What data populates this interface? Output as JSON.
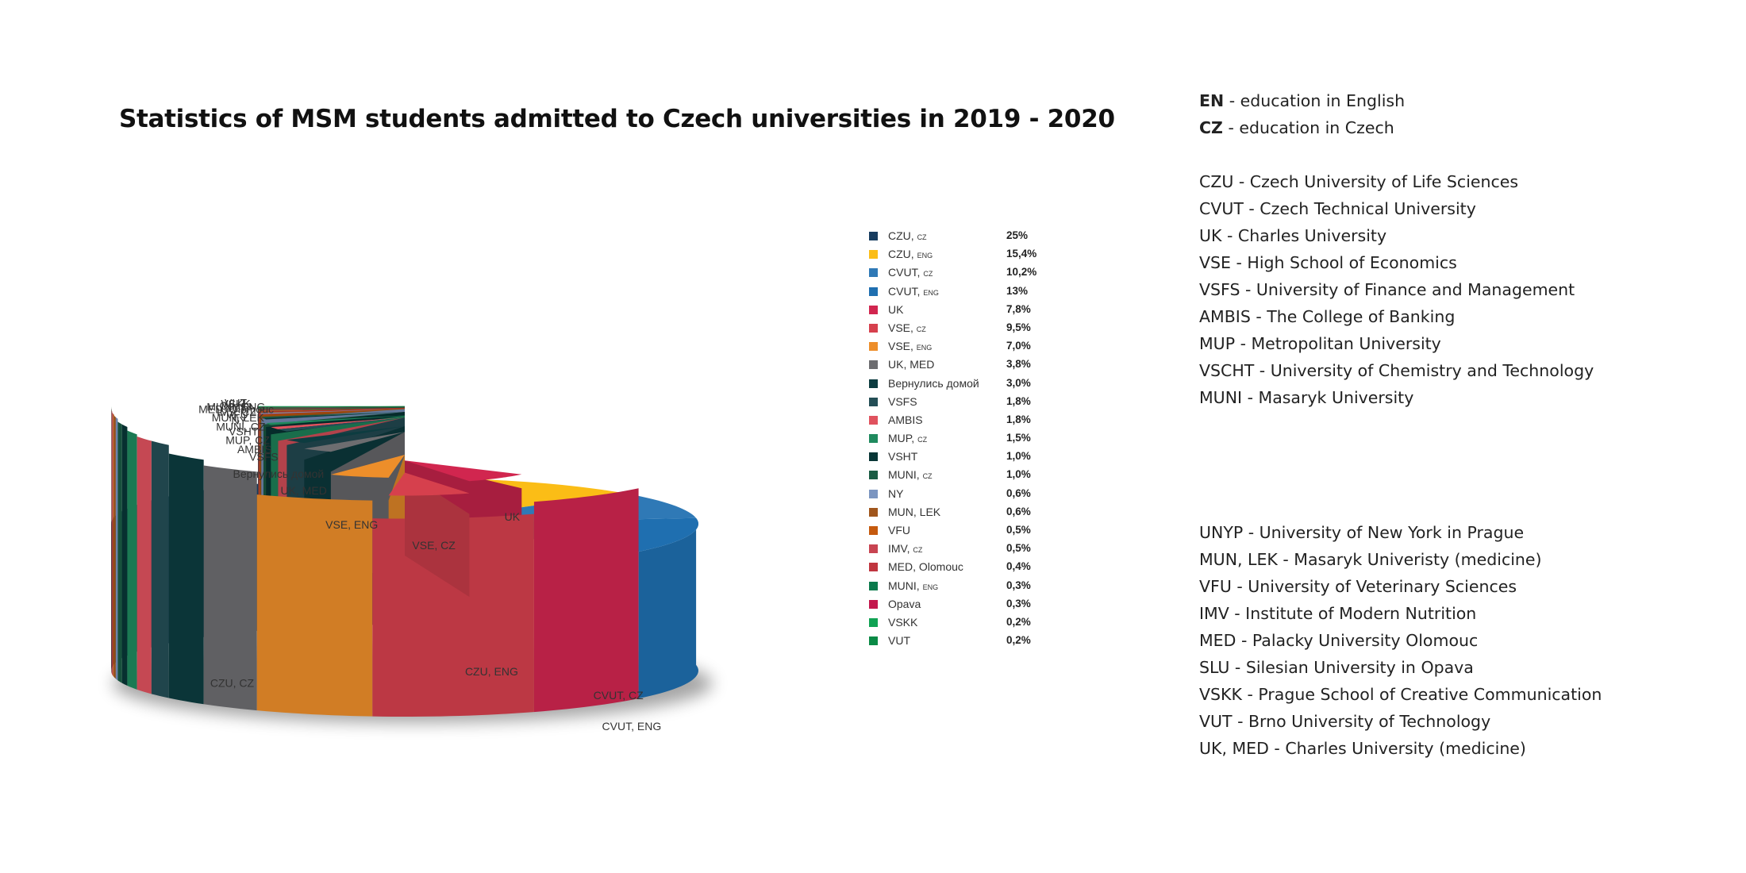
{
  "chart_data": {
    "type": "pie",
    "title": "Statistics of MSM students admitted to Czech universities in 2019 - 2020",
    "legend_position": "right",
    "slices": [
      {
        "label": "CZU, CZ",
        "legend_main": "CZU,",
        "legend_sub": "CZ",
        "value": 25,
        "value_label": "25%",
        "color": "#173c5f"
      },
      {
        "label": "CZU, ENG",
        "legend_main": "CZU,",
        "legend_sub": "ENG",
        "value": 15.4,
        "value_label": "15,4%",
        "color": "#fbbd16"
      },
      {
        "label": "CVUT, CZ",
        "legend_main": "CVUT,",
        "legend_sub": "CZ",
        "value": 10.2,
        "value_label": "10,2%",
        "color": "#2f79b6"
      },
      {
        "label": "CVUT, ENG",
        "legend_main": "CVUT,",
        "legend_sub": "ENG",
        "value": 13,
        "value_label": "13%",
        "color": "#1f6fb0"
      },
      {
        "label": "UK",
        "legend_main": "UK",
        "legend_sub": "",
        "value": 7.8,
        "value_label": "7,8%",
        "color": "#d1264f"
      },
      {
        "label": "VSE, CZ",
        "legend_main": "VSE,",
        "legend_sub": "CZ",
        "value": 9.5,
        "value_label": "9,5%",
        "color": "#d6404d"
      },
      {
        "label": "VSE, ENG",
        "legend_main": "VSE,",
        "legend_sub": "ENG",
        "value": 7.0,
        "value_label": "7,0%",
        "color": "#ed8e2a"
      },
      {
        "label": "UK, MED",
        "legend_main": "UK, MED",
        "legend_sub": "",
        "value": 3.8,
        "value_label": "3,8%",
        "color": "#6d6d70"
      },
      {
        "label": "Вернулись домой",
        "legend_main": "Вернулись домой",
        "legend_sub": "",
        "value": 3.0,
        "value_label": "3,0%",
        "color": "#0d3c40"
      },
      {
        "label": "VSFS",
        "legend_main": "VSFS",
        "legend_sub": "",
        "value": 1.8,
        "value_label": "1,8%",
        "color": "#244e56"
      },
      {
        "label": "AMBIS",
        "legend_main": "AMBIS",
        "legend_sub": "",
        "value": 1.8,
        "value_label": "1,8%",
        "color": "#e0525e"
      },
      {
        "label": "MUP, CZ",
        "legend_main": "MUP,",
        "legend_sub": "CZ",
        "value": 1.5,
        "value_label": "1,5%",
        "color": "#1f8a5e"
      },
      {
        "label": "VSHT",
        "legend_main": "VSHT",
        "legend_sub": "",
        "value": 1.0,
        "value_label": "1,0%",
        "color": "#083636"
      },
      {
        "label": "MUNI, CZ",
        "legend_main": "MUNI,",
        "legend_sub": "CZ",
        "value": 1.0,
        "value_label": "1,0%",
        "color": "#1a5c44"
      },
      {
        "label": "NY",
        "legend_main": "NY",
        "legend_sub": "",
        "value": 0.6,
        "value_label": "0,6%",
        "color": "#7b95c0"
      },
      {
        "label": "MUN, LEK",
        "legend_main": "MUN, LEK",
        "legend_sub": "",
        "value": 0.6,
        "value_label": "0,6%",
        "color": "#a0561c"
      },
      {
        "label": "VFU",
        "legend_main": "VFU",
        "legend_sub": "",
        "value": 0.5,
        "value_label": "0,5%",
        "color": "#c55a0e"
      },
      {
        "label": "IMV, CZ",
        "legend_main": "IMV,",
        "legend_sub": "CZ",
        "value": 0.5,
        "value_label": "0,5%",
        "color": "#c84451"
      },
      {
        "label": "MED, Olomouc",
        "legend_main": "MED, Olomouc",
        "legend_sub": "",
        "value": 0.4,
        "value_label": "0,4%",
        "color": "#c0353f"
      },
      {
        "label": "MUNI, ENG",
        "legend_main": "MUNI,",
        "legend_sub": "ENG",
        "value": 0.3,
        "value_label": "0,3%",
        "color": "#0b7a4c"
      },
      {
        "label": "Opava",
        "legend_main": "Opava",
        "legend_sub": "",
        "value": 0.3,
        "value_label": "0,3%",
        "color": "#c3184d"
      },
      {
        "label": "VSKK",
        "legend_main": "VSKK",
        "legend_sub": "",
        "value": 0.2,
        "value_label": "0,2%",
        "color": "#10a253"
      },
      {
        "label": "VUT",
        "legend_main": "VUT",
        "legend_sub": "",
        "value": 0.2,
        "value_label": "0,2%",
        "color": "#0a8a46"
      }
    ]
  },
  "notes": {
    "group_a_label": "EN",
    "group_a_text": " - education in English",
    "group_b_label": "CZ",
    "group_b_text": " - education in Czech",
    "abbreviations_1": [
      "CZU - Czech University of Life Sciences",
      "CVUT - Czech Technical University",
      "UK - Charles University",
      "VSE - High School of Economics",
      "VSFS - University of Finance and Management",
      "AMBIS - The College of Banking",
      "MUP - Metropolitan University",
      "VSCHT - University of Chemistry and Technology",
      "MUNI - Masaryk University"
    ],
    "abbreviations_2": [
      "UNYP - University of New York in Prague",
      "MUN, LEK - Masaryk Univeristy (medicine)",
      "VFU - University of Veterinary Sciences",
      "IMV - Institute of Modern Nutrition",
      "MED - Palacky University Olomouc",
      "SLU - Silesian University in Opava",
      "VSKK - Prague School of Creative Communication",
      "VUT - Brno University of Technology",
      "UK, MED - Charles University (medicine)"
    ]
  }
}
